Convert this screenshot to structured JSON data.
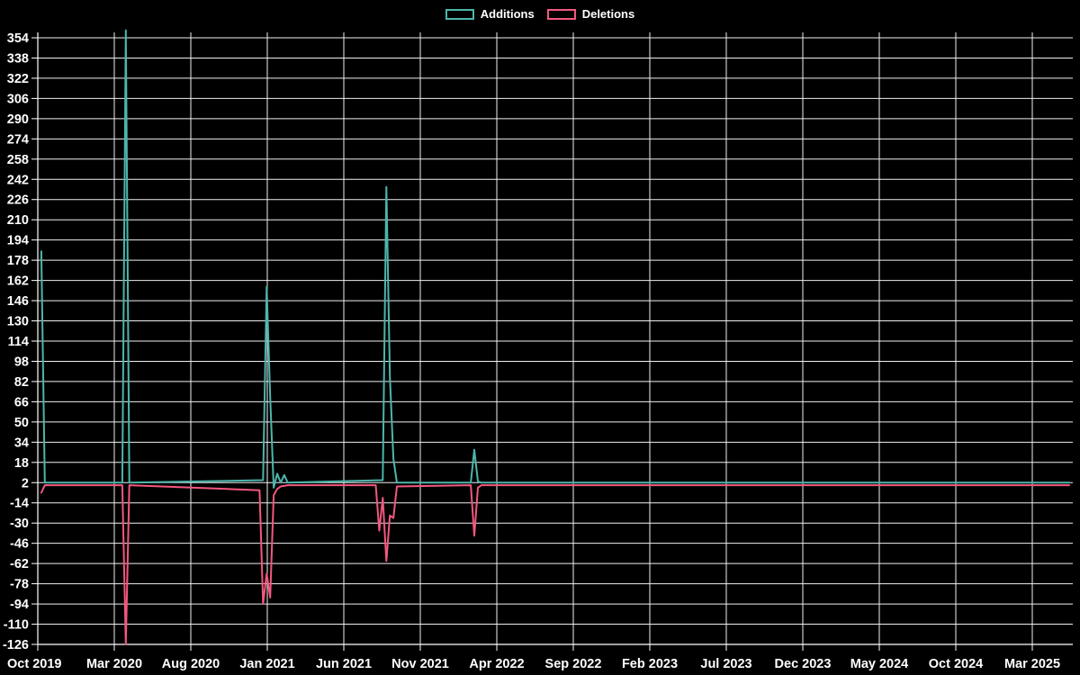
{
  "page": {
    "background": "#000000",
    "text_color": "#ffffff"
  },
  "legend": {
    "items": [
      {
        "label": "Additions",
        "color": "#4db6ac"
      },
      {
        "label": "Deletions",
        "color": "#f2587f"
      }
    ]
  },
  "chart_data": {
    "type": "line",
    "title": "",
    "xlabel": "",
    "ylabel": "",
    "grid": true,
    "grid_color": "#efefef",
    "background": "#000000",
    "legend_position": "top-center",
    "x_unit": "weeks since Oct 2019",
    "x_tick_labels": [
      "Oct 2019",
      "Mar 2020",
      "Aug 2020",
      "Jan 2021",
      "Jun 2021",
      "Nov 2021",
      "Apr 2022",
      "Sep 2022",
      "Feb 2023",
      "Jul 2023",
      "Dec 2023",
      "May 2024",
      "Oct 2024",
      "Mar 2025"
    ],
    "y_ticks": [
      354,
      338,
      322,
      306,
      290,
      274,
      258,
      242,
      226,
      210,
      194,
      178,
      162,
      146,
      130,
      114,
      98,
      82,
      66,
      50,
      34,
      18,
      2,
      -14,
      -30,
      -46,
      -62,
      -78,
      -94,
      -110,
      -126
    ],
    "ylim": [
      -126,
      354
    ],
    "x_weeks_total": 293,
    "series": [
      {
        "name": "Deletions",
        "color": "#f2587f",
        "points": [
          [
            1,
            -6
          ],
          [
            2,
            0
          ],
          [
            24,
            0
          ],
          [
            25,
            -126
          ],
          [
            26,
            0
          ],
          [
            63,
            -4
          ],
          [
            64,
            -94
          ],
          [
            65,
            -70
          ],
          [
            66,
            -89
          ],
          [
            67,
            -8
          ],
          [
            68,
            -3
          ],
          [
            69,
            -1
          ],
          [
            71,
            0
          ],
          [
            96,
            0
          ],
          [
            97,
            -36
          ],
          [
            98,
            -10
          ],
          [
            99,
            -60
          ],
          [
            100,
            -24
          ],
          [
            101,
            -26
          ],
          [
            102,
            -1
          ],
          [
            123,
            0
          ],
          [
            124,
            -40
          ],
          [
            125,
            -2
          ],
          [
            126,
            0
          ],
          [
            293,
            0
          ]
        ]
      },
      {
        "name": "Additions",
        "color": "#4db6ac",
        "points": [
          [
            1,
            185
          ],
          [
            2,
            2
          ],
          [
            24,
            2
          ],
          [
            25,
            360
          ],
          [
            26,
            2
          ],
          [
            64,
            4
          ],
          [
            65,
            157
          ],
          [
            66,
            70
          ],
          [
            67,
            -2
          ],
          [
            68,
            9
          ],
          [
            69,
            2
          ],
          [
            70,
            8
          ],
          [
            71,
            2
          ],
          [
            98,
            4
          ],
          [
            99,
            236
          ],
          [
            100,
            86
          ],
          [
            101,
            21
          ],
          [
            102,
            2
          ],
          [
            123,
            2
          ],
          [
            124,
            28
          ],
          [
            125,
            3
          ],
          [
            126,
            2
          ],
          [
            293,
            2
          ]
        ]
      }
    ]
  }
}
